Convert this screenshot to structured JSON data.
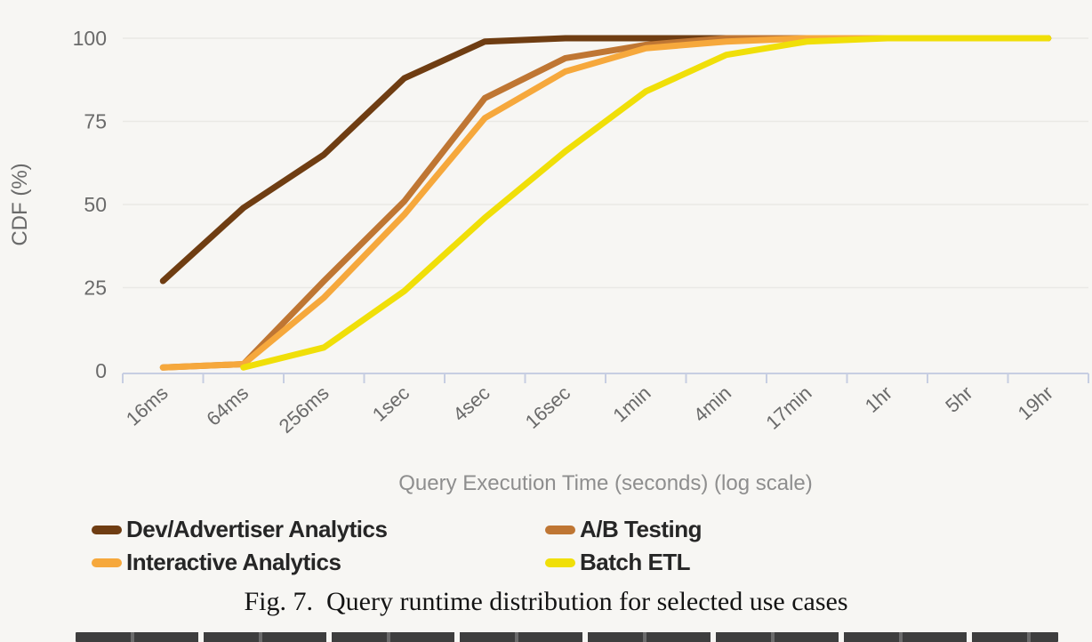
{
  "chart_data": {
    "type": "line",
    "title": "",
    "xlabel": "Query Execution Time (seconds) (log scale)",
    "ylabel": "CDF (%)",
    "ylim": [
      0,
      100
    ],
    "yticks": [
      0,
      25,
      50,
      75,
      100
    ],
    "grid": true,
    "legend_position": "bottom",
    "categories": [
      "16ms",
      "64ms",
      "256ms",
      "1sec",
      "4sec",
      "16sec",
      "1min",
      "4min",
      "17min",
      "1hr",
      "5hr",
      "19hr"
    ],
    "series": [
      {
        "name": "Dev/Advertiser Analytics",
        "color": "#6f3d12",
        "values": [
          27,
          49,
          65,
          88,
          99,
          100,
          100,
          100,
          100,
          100,
          100,
          100
        ]
      },
      {
        "name": "A/B Testing",
        "color": "#bf7633",
        "values": [
          1,
          2,
          27,
          51,
          82,
          94,
          98,
          100,
          100,
          100,
          100,
          100
        ]
      },
      {
        "name": "Interactive Analytics",
        "color": "#f6a83c",
        "values": [
          1,
          2,
          22,
          47,
          76,
          90,
          97,
          99,
          100,
          100,
          100,
          100
        ]
      },
      {
        "name": "Batch ETL",
        "color": "#f0df08",
        "values": [
          null,
          1,
          7,
          24,
          46,
          66,
          84,
          95,
          99,
          100,
          100,
          100
        ]
      }
    ]
  },
  "caption": "Fig. 7.  Query runtime distribution for selected use cases",
  "colors": {
    "background": "#f7f6f3",
    "gridline": "#eae9e5",
    "axis": "#c7cee2",
    "tick_text": "#6a6a6a",
    "axis_title_text": "#8e8e8e"
  }
}
